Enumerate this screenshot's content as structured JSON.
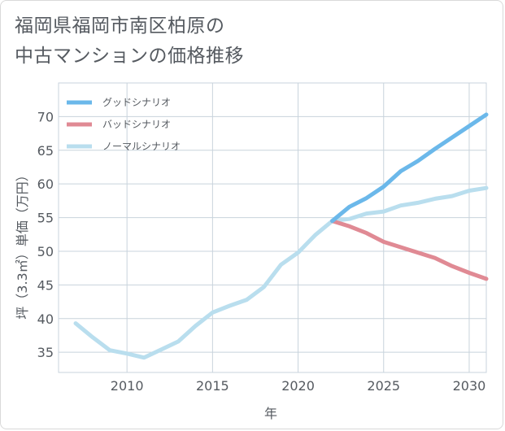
{
  "title_lines": [
    "福岡県福岡市南区柏原の",
    "中古マンションの価格推移"
  ],
  "chart_data": {
    "type": "line",
    "xlabel": "年",
    "ylabel": "坪（3.3㎡）単価（万円）",
    "xlim": [
      2006,
      2031
    ],
    "ylim": [
      32,
      75
    ],
    "xticks": [
      2010,
      2015,
      2020,
      2025,
      2030
    ],
    "yticks": [
      35,
      40,
      45,
      50,
      55,
      60,
      65,
      70
    ],
    "grid": true,
    "legend_position": "top-left",
    "series": [
      {
        "name": "グッドシナリオ",
        "color": "#6bb8ea",
        "x": [
          2022,
          2023,
          2024,
          2025,
          2026,
          2027,
          2028,
          2029,
          2030,
          2031
        ],
        "values": [
          54.5,
          56.6,
          57.9,
          59.6,
          61.9,
          63.4,
          65.2,
          66.9,
          68.6,
          70.3
        ]
      },
      {
        "name": "バッドシナリオ",
        "color": "#e08a94",
        "x": [
          2022,
          2023,
          2024,
          2025,
          2026,
          2027,
          2028,
          2029,
          2030,
          2031
        ],
        "values": [
          54.5,
          53.7,
          52.7,
          51.4,
          50.6,
          49.8,
          49.0,
          47.8,
          46.8,
          45.9
        ]
      },
      {
        "name": "ノーマルシナリオ",
        "color": "#b9deee",
        "x": [
          2007,
          2008,
          2009,
          2010,
          2011,
          2012,
          2013,
          2014,
          2015,
          2016,
          2017,
          2018,
          2019,
          2020,
          2021,
          2022,
          2023,
          2024,
          2025,
          2026,
          2027,
          2028,
          2029,
          2030,
          2031
        ],
        "values": [
          39.3,
          37.2,
          35.3,
          34.8,
          34.2,
          35.4,
          36.6,
          38.9,
          40.9,
          41.9,
          42.8,
          44.7,
          48.0,
          49.8,
          52.4,
          54.5,
          54.8,
          55.6,
          55.9,
          56.8,
          57.2,
          57.8,
          58.2,
          59.0,
          59.4
        ]
      }
    ]
  }
}
